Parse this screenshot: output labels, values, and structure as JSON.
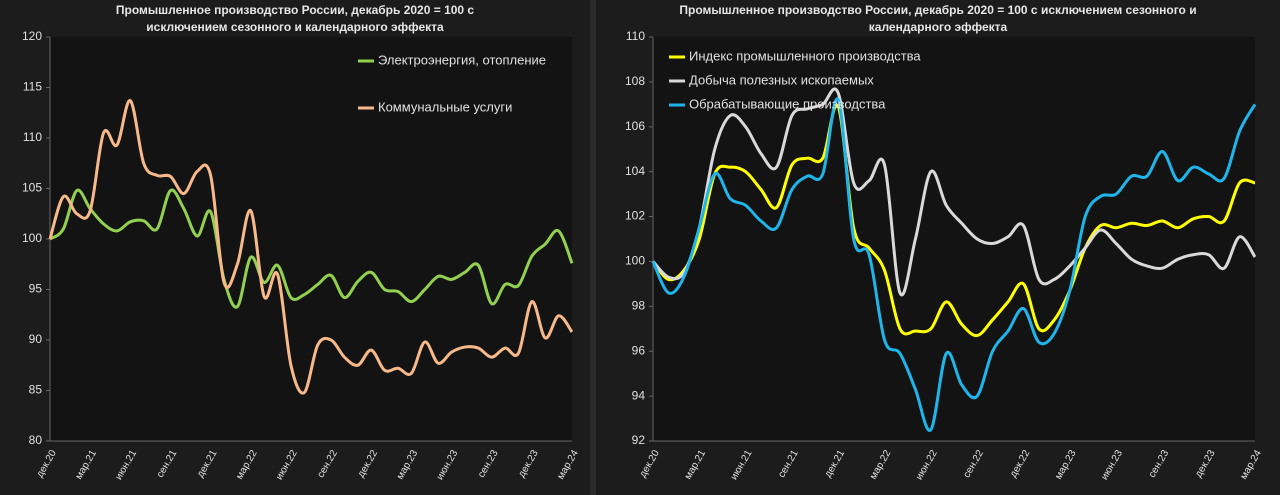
{
  "chart_data": [
    {
      "type": "line",
      "title": "Промышленное производство России, декабрь 2020 = 100 с исключением сезонного и календарного эффекта",
      "categories": [
        "дек.20",
        null,
        null,
        "мар.21",
        null,
        null,
        "июн.21",
        null,
        null,
        "сен.21",
        null,
        null,
        "дек.21",
        null,
        null,
        "мар.22",
        null,
        null,
        "июн.22",
        null,
        null,
        "сен.22",
        null,
        null,
        "дек.22",
        null,
        null,
        "мар.23",
        null,
        null,
        "июн.23",
        null,
        null,
        "сен.23",
        null,
        null,
        "дек.23",
        null,
        null,
        "мар.24"
      ],
      "series": [
        {
          "name": "Электроэнергия, отопление",
          "color": "#92d050",
          "values": [
            100,
            101,
            104.8,
            103,
            101.5,
            100.8,
            101.7,
            101.8,
            101,
            104.8,
            103,
            100.3,
            102.7,
            96,
            93.3,
            98.2,
            95.7,
            97.4,
            94.2,
            94.5,
            95.5,
            96.4,
            94.2,
            95.8,
            96.7,
            95,
            94.8,
            93.8,
            95,
            96.3,
            96,
            96.7,
            97.4,
            93.6,
            95.5,
            95.4,
            98.3,
            99.5,
            100.8,
            97.6
          ]
        },
        {
          "name": "Коммунальные услуги",
          "color": "#f8b98a",
          "values": [
            100,
            104.2,
            102.5,
            102.8,
            110.5,
            109.3,
            113.7,
            107.5,
            106.3,
            106.2,
            104.5,
            106.7,
            106.3,
            95.7,
            97.5,
            102.8,
            94.3,
            96.5,
            87.5,
            84.8,
            89.5,
            90,
            88.3,
            87.5,
            89,
            87,
            87.2,
            86.7,
            89.8,
            87.7,
            88.8,
            89.3,
            89.2,
            88.3,
            89.2,
            88.7,
            93.8,
            90.2,
            92.4,
            90.8
          ]
        }
      ],
      "ylim": [
        80,
        120
      ],
      "yticks": [
        80,
        85,
        90,
        95,
        100,
        105,
        110,
        115,
        120
      ],
      "grid": false,
      "legend": "upper right"
    },
    {
      "type": "line",
      "title": "Промышленное производство России, декабрь 2020 = 100 с исключением сезонного и календарного эффекта",
      "categories": [
        "дек.20",
        null,
        null,
        "мар.21",
        null,
        null,
        "июн.21",
        null,
        null,
        "сен.21",
        null,
        null,
        "дек.21",
        null,
        null,
        "мар.22",
        null,
        null,
        "июн.22",
        null,
        null,
        "сен.22",
        null,
        null,
        "дек.22",
        null,
        null,
        "мар.23",
        null,
        null,
        "июн.23",
        null,
        null,
        "сен.23",
        null,
        null,
        "дек.23",
        null,
        null,
        "мар.24"
      ],
      "series": [
        {
          "name": "Индекс промышленного производства",
          "color": "#ffff00",
          "values": [
            100,
            99.2,
            99.6,
            101,
            103.9,
            104.2,
            104,
            103.2,
            102.4,
            104.3,
            104.6,
            104.6,
            106.9,
            101.5,
            100.6,
            99.6,
            97,
            96.9,
            97,
            98.2,
            97.2,
            96.7,
            97.4,
            98.2,
            99,
            97,
            97.4,
            98.7,
            100.6,
            101.6,
            101.5,
            101.7,
            101.6,
            101.8,
            101.5,
            101.9,
            102,
            101.8,
            103.5,
            103.5
          ]
        },
        {
          "name": "Добыча полезных ископаемых",
          "color": "#d9d9d9",
          "values": [
            100,
            99.3,
            99.5,
            101.5,
            105,
            106.5,
            106,
            104.8,
            104.2,
            106.5,
            106.8,
            107,
            107.5,
            103.5,
            103.6,
            104.3,
            98.6,
            101,
            104,
            102.5,
            101.7,
            101,
            100.8,
            101.1,
            101.6,
            99.2,
            99.2,
            99.8,
            100.6,
            101.4,
            100.8,
            100.1,
            99.8,
            99.7,
            100.1,
            100.3,
            100.3,
            99.7,
            101.1,
            100.2
          ]
        },
        {
          "name": "Обрабатывающие производства",
          "color": "#1fb5ea",
          "values": [
            100,
            98.6,
            99.3,
            101.5,
            103.9,
            102.8,
            102.5,
            101.8,
            101.5,
            103.2,
            103.8,
            103.9,
            107.2,
            101,
            100.3,
            96.5,
            95.9,
            94.3,
            92.5,
            95.9,
            94.5,
            94,
            96,
            96.9,
            97.9,
            96.4,
            96.8,
            98.7,
            102,
            102.9,
            103,
            103.8,
            103.8,
            104.9,
            103.6,
            104.2,
            103.9,
            103.7,
            105.8,
            107
          ]
        }
      ],
      "ylim": [
        92,
        110
      ],
      "yticks": [
        92,
        94,
        96,
        98,
        100,
        102,
        104,
        106,
        108,
        110
      ],
      "grid": false,
      "legend": "upper left"
    }
  ]
}
